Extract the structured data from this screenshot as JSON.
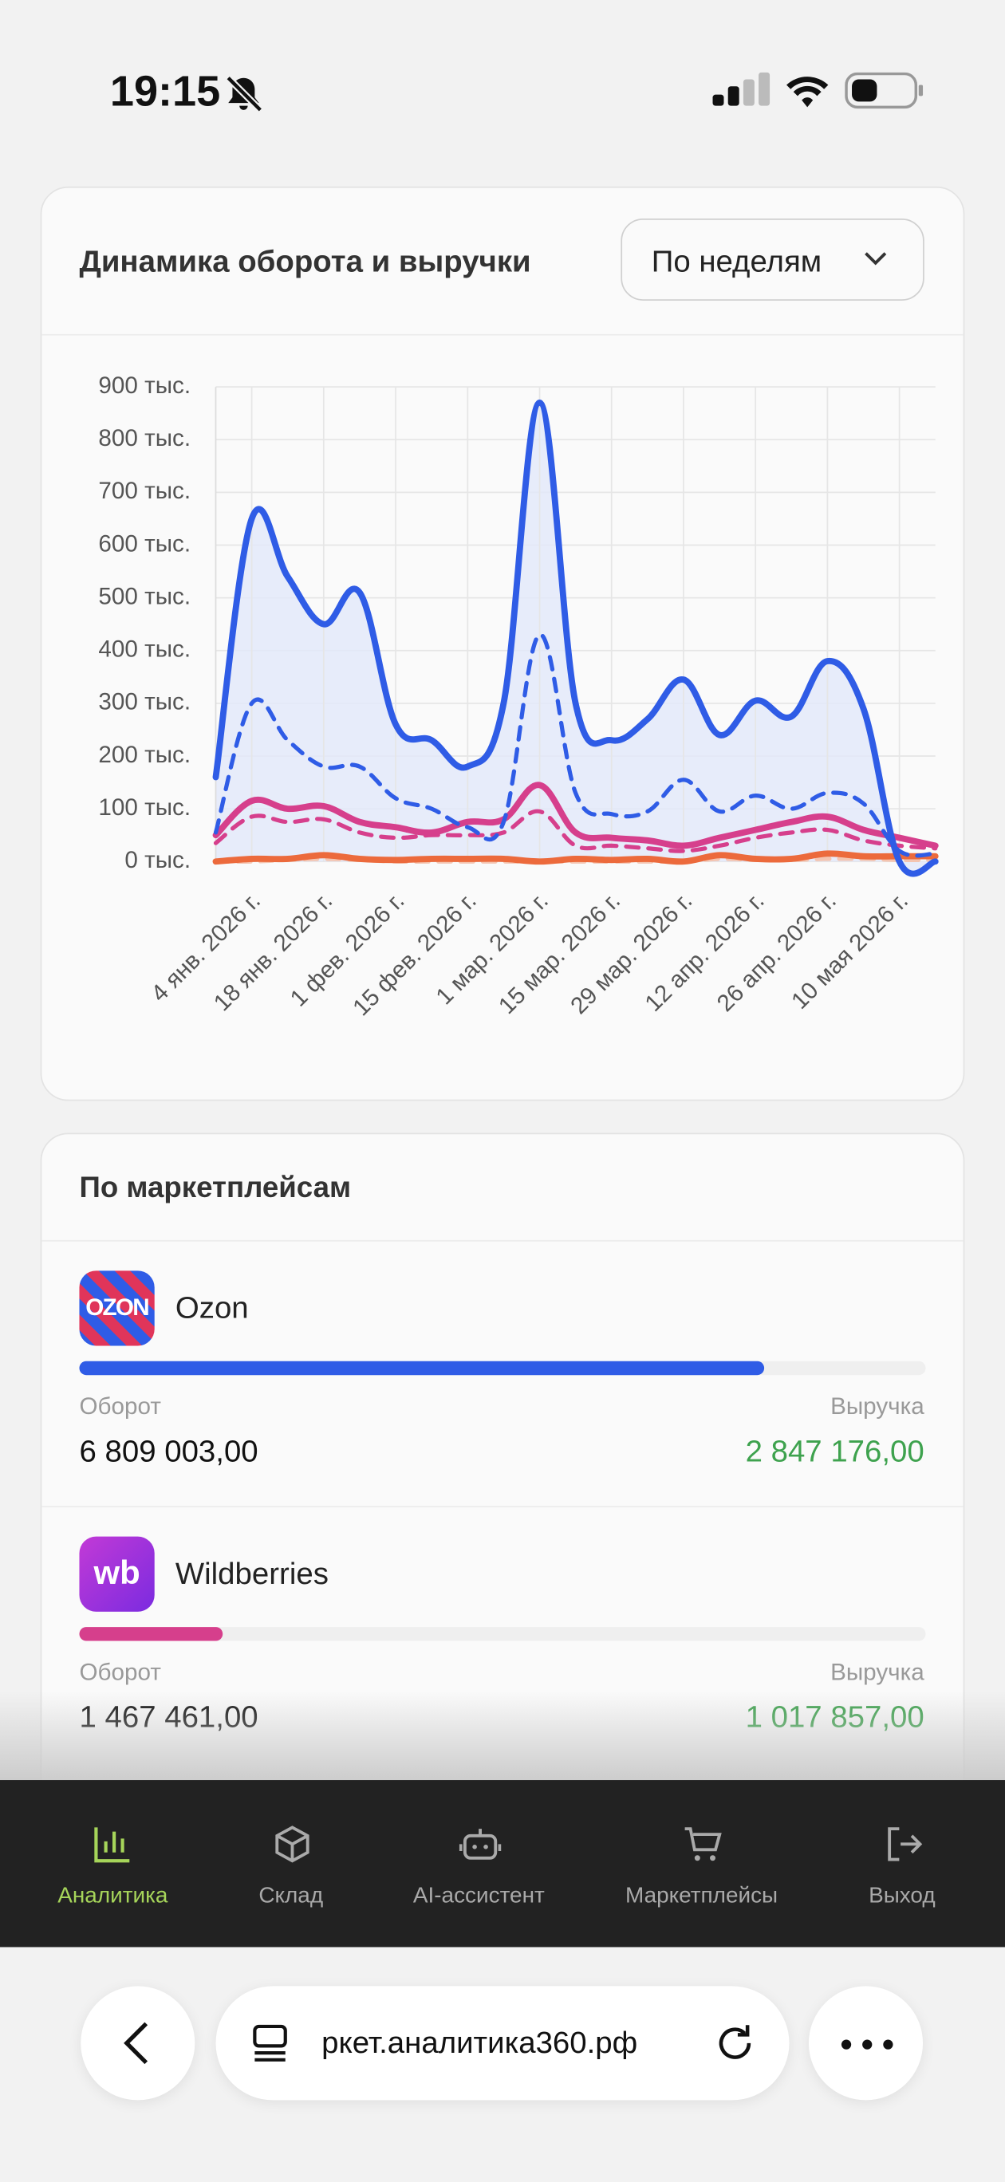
{
  "status_bar": {
    "time": "19:15"
  },
  "chart_card": {
    "title": "Динамика оборота и выручки",
    "period_select": "По неделям"
  },
  "chart_data": {
    "type": "line",
    "categories": [
      null,
      "4 янв. 2026 г.",
      null,
      "18 янв. 2026 г.",
      null,
      "1 фев. 2026 г.",
      null,
      "15 фев. 2026 г.",
      null,
      "1 мар. 2026 г.",
      null,
      "15 мар. 2026 г.",
      null,
      "29 мар. 2026 г.",
      null,
      "12 апр. 2026 г.",
      null,
      "26 апр. 2026 г.",
      null,
      "10 мая 2026 г.",
      null
    ],
    "series": [
      {
        "color": "#2f5ce6",
        "style": "solid",
        "fill": "#e2e9fa",
        "values": [
          160,
          650,
          540,
          450,
          510,
          260,
          230,
          180,
          300,
          870,
          300,
          230,
          270,
          345,
          240,
          305,
          275,
          380,
          290,
          0,
          0
        ]
      },
      {
        "color": "#2f5ce6",
        "style": "dashed",
        "values": [
          55,
          300,
          230,
          180,
          180,
          120,
          100,
          65,
          75,
          430,
          130,
          90,
          95,
          155,
          95,
          125,
          100,
          130,
          110,
          20,
          15
        ]
      },
      {
        "color": "#d63f8c",
        "style": "solid",
        "values": [
          50,
          115,
          100,
          105,
          75,
          65,
          55,
          75,
          80,
          145,
          55,
          45,
          40,
          30,
          45,
          60,
          75,
          85,
          60,
          45,
          30
        ]
      },
      {
        "color": "#d63f8c",
        "style": "dashed",
        "values": [
          35,
          85,
          75,
          80,
          55,
          45,
          50,
          50,
          55,
          95,
          30,
          30,
          25,
          20,
          30,
          45,
          55,
          60,
          40,
          30,
          25
        ]
      },
      {
        "color": "#ec6a3c",
        "style": "solid",
        "values": [
          0,
          5,
          5,
          12,
          5,
          3,
          5,
          5,
          5,
          0,
          5,
          3,
          5,
          0,
          12,
          5,
          5,
          15,
          10,
          10,
          10
        ]
      },
      {
        "color": "#f4c4b0",
        "style": "dashed",
        "values": [
          0,
          0,
          3,
          5,
          3,
          0,
          0,
          0,
          0,
          0,
          0,
          0,
          0,
          0,
          5,
          3,
          3,
          5,
          5,
          3,
          3
        ]
      }
    ],
    "ylim": [
      0,
      900
    ],
    "yticks": [
      {
        "value": 0,
        "label": "0 тыс."
      },
      {
        "value": 100,
        "label": "100 тыс."
      },
      {
        "value": 200,
        "label": "200 тыс."
      },
      {
        "value": 300,
        "label": "300 тыс."
      },
      {
        "value": 400,
        "label": "400 тыс."
      },
      {
        "value": 500,
        "label": "500 тыс."
      },
      {
        "value": 600,
        "label": "600 тыс."
      },
      {
        "value": 700,
        "label": "700 тыс."
      },
      {
        "value": 800,
        "label": "800 тыс."
      },
      {
        "value": 900,
        "label": "900 тыс."
      }
    ],
    "grid": true
  },
  "marketplaces": {
    "title": "По маркетплейсам",
    "items": [
      {
        "logo": "OZON",
        "name": "Ozon",
        "share": 81,
        "bar_color": "#2f5ce6",
        "turnover_label": "Оборот",
        "turnover": "6 809 003,00",
        "revenue_label": "Выручка",
        "revenue": "2 847 176,00"
      },
      {
        "logo": "wb",
        "name": "Wildberries",
        "share": 17,
        "bar_color": "#d63f8c",
        "turnover_label": "Оборот",
        "turnover": "1 467 461,00",
        "revenue_label": "Выручка",
        "revenue": "1 017 857,00"
      }
    ]
  },
  "nav": {
    "items": [
      "Аналитика",
      "Склад",
      "AI-ассистент",
      "Маркетплейсы",
      "Выход"
    ]
  },
  "browser": {
    "url": "ркет.аналитика360.рф"
  }
}
